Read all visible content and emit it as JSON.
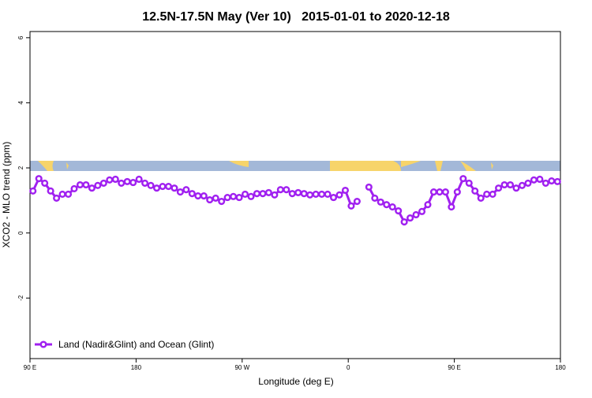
{
  "chart_data": {
    "type": "line",
    "title": "12.5N-17.5N May (Ver 10)   2015-01-01 to 2020-12-18",
    "x_label": "Longitude (deg E)",
    "y_label": "XCO2 - MLO trend (ppm)",
    "x": [
      92.5,
      97.5,
      102.5,
      107.5,
      112.5,
      117.5,
      122.5,
      127.5,
      132.5,
      137.5,
      142.5,
      147.5,
      152.5,
      157.5,
      162.5,
      167.5,
      172.5,
      177.5,
      182.5,
      187.5,
      192.5,
      197.5,
      202.5,
      207.5,
      212.5,
      217.5,
      222.5,
      227.5,
      232.5,
      237.5,
      242.5,
      247.5,
      252.5,
      257.5,
      262.5,
      267.5,
      272.5,
      277.5,
      282.5,
      287.5,
      292.5,
      297.5,
      302.5,
      307.5,
      312.5,
      317.5,
      322.5,
      327.5,
      332.5,
      337.5,
      342.5,
      347.5,
      352.5,
      357.5,
      362.5,
      367.5,
      372.5,
      377.5,
      382.5,
      387.5,
      392.5,
      397.5,
      402.5,
      407.5,
      412.5,
      417.5,
      422.5,
      427.5,
      432.5,
      437.5,
      442.5,
      447.5,
      452.5,
      457.5,
      462.5,
      467.5,
      472.5,
      477.5,
      482.5,
      487.5,
      492.5,
      497.5,
      502.5,
      507.5,
      512.5,
      517.5,
      522.5,
      527.5,
      532.5,
      537.5
    ],
    "series": [
      {
        "name": "Land (Nadir&Glint) and Ocean (Glint)",
        "color": "#a020f0",
        "values": [
          1.29,
          1.67,
          1.53,
          1.29,
          1.07,
          1.19,
          1.19,
          1.36,
          1.48,
          1.48,
          1.38,
          1.46,
          1.53,
          1.63,
          1.65,
          1.53,
          1.58,
          1.55,
          1.65,
          1.53,
          1.46,
          1.38,
          1.43,
          1.43,
          1.38,
          1.26,
          1.33,
          1.21,
          1.14,
          1.14,
          1.02,
          1.07,
          0.97,
          1.09,
          1.12,
          1.09,
          1.19,
          1.12,
          1.21,
          1.21,
          1.24,
          1.17,
          1.33,
          1.33,
          1.21,
          1.24,
          1.21,
          1.17,
          1.19,
          1.19,
          1.19,
          1.09,
          1.17,
          1.31,
          0.83,
          0.97,
          null,
          1.41,
          1.07,
          0.95,
          0.87,
          0.8,
          0.68,
          0.34,
          0.46,
          0.56,
          0.66,
          0.87,
          1.26,
          1.26,
          1.26,
          0.8,
          1.26,
          1.67,
          1.53,
          1.29,
          1.07,
          1.19,
          1.19,
          1.38,
          1.48,
          1.48,
          1.38,
          1.46,
          1.53,
          1.63,
          1.65,
          1.53,
          1.6,
          1.58
        ]
      }
    ],
    "xlim": [
      90,
      540
    ],
    "xticks": [
      {
        "value": 90,
        "label": "90 E"
      },
      180,
      {
        "value": 270,
        "label": "90 W"
      },
      {
        "value": 360,
        "label": "0"
      },
      {
        "value": 450,
        "label": "90 E"
      },
      {
        "value": 540,
        "label": "180"
      }
    ],
    "ylim": [
      -3.86,
      6.19
    ],
    "yticks": [
      -2,
      0,
      2,
      4,
      6
    ],
    "legend": "bottom-left"
  }
}
